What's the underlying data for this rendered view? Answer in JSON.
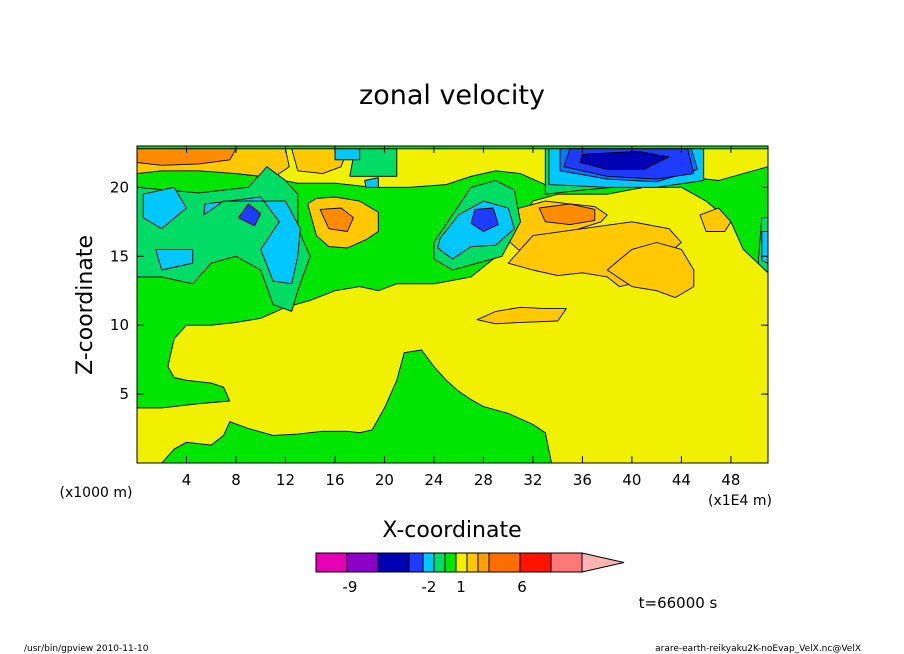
{
  "chart_data": {
    "type": "heatmap",
    "title": "zonal velocity",
    "xlabel": "X-coordinate",
    "ylabel": "Z-coordinate",
    "x_unit_label": "(x1E4 m)",
    "y_unit_label": "(x1000 m)",
    "xlim": [
      0,
      51
    ],
    "ylim": [
      0,
      23
    ],
    "x_ticks": [
      4,
      8,
      12,
      16,
      20,
      24,
      28,
      32,
      36,
      40,
      44,
      48
    ],
    "y_ticks": [
      5,
      10,
      15,
      20
    ],
    "colorbar": {
      "colors": [
        "#e600b4",
        "#8c00c8",
        "#0000b4",
        "#1e3cff",
        "#00c8ff",
        "#00dc64",
        "#00e600",
        "#f0f000",
        "#ffc800",
        "#ffa000",
        "#ff6e00",
        "#ff1400",
        "#ff7878",
        "#ffb4b4"
      ],
      "tick_labels": [
        "-9",
        "-2",
        "1",
        "6"
      ]
    },
    "annotation_time": "t=66000 s",
    "regions": [
      {
        "value": -9,
        "points": [
          [
            36,
            22.4
          ],
          [
            40.5,
            22.6
          ],
          [
            43,
            22.2
          ],
          [
            41,
            21.3
          ],
          [
            38,
            21.3
          ],
          [
            35.8,
            21.8
          ]
        ]
      },
      {
        "value": -6,
        "points": [
          [
            35,
            22.8
          ],
          [
            44.5,
            22.8
          ],
          [
            45,
            21
          ],
          [
            42,
            20.6
          ],
          [
            38,
            20.8
          ],
          [
            34.5,
            21.5
          ]
        ]
      },
      {
        "value": -6,
        "points": [
          [
            9,
            18.8
          ],
          [
            10,
            18.1
          ],
          [
            9.5,
            17.2
          ],
          [
            8.2,
            17.8
          ]
        ]
      },
      {
        "value": -6,
        "points": [
          [
            27.3,
            18.4
          ],
          [
            28.8,
            18.5
          ],
          [
            29.2,
            17.3
          ],
          [
            28,
            16.8
          ],
          [
            27,
            17.4
          ]
        ]
      },
      {
        "value": -4,
        "points": [
          [
            34.2,
            22.8
          ],
          [
            44.8,
            22.8
          ],
          [
            45.3,
            21.3
          ],
          [
            42,
            20.4
          ],
          [
            38,
            20.6
          ],
          [
            34.2,
            21.2
          ]
        ]
      },
      {
        "value": -2,
        "points": [
          [
            33.3,
            22.8
          ],
          [
            45.8,
            22.8
          ],
          [
            45.8,
            20.5
          ],
          [
            42,
            20
          ],
          [
            38,
            20
          ],
          [
            33.3,
            20.2
          ]
        ]
      },
      {
        "value": -2,
        "points": [
          [
            0.5,
            19.5
          ],
          [
            3,
            20
          ],
          [
            4,
            18.5
          ],
          [
            2,
            17
          ],
          [
            0.5,
            17.8
          ]
        ]
      },
      {
        "value": -2,
        "points": [
          [
            5.5,
            18.8
          ],
          [
            10,
            19.3
          ],
          [
            11.5,
            17.5
          ],
          [
            10,
            15.5
          ],
          [
            11,
            13.2
          ],
          [
            12.5,
            13
          ],
          [
            13,
            15
          ],
          [
            13.2,
            17
          ],
          [
            12,
            19
          ],
          [
            7,
            19
          ],
          [
            5.4,
            18
          ]
        ]
      },
      {
        "value": -2,
        "points": [
          [
            24.5,
            16.3
          ],
          [
            26,
            18
          ],
          [
            28,
            19
          ],
          [
            30,
            18.5
          ],
          [
            30.5,
            17
          ],
          [
            29,
            15.8
          ],
          [
            27,
            15.7
          ],
          [
            25.5,
            14.8
          ],
          [
            24.3,
            15.6
          ]
        ]
      },
      {
        "value": -2,
        "points": [
          [
            16,
            22.8
          ],
          [
            18,
            22.8
          ],
          [
            18,
            22
          ],
          [
            16,
            22
          ]
        ]
      },
      {
        "value": -2,
        "points": [
          [
            18.4,
            20.5
          ],
          [
            19.5,
            20.7
          ],
          [
            19.5,
            20
          ],
          [
            18.5,
            20
          ]
        ]
      },
      {
        "value": -2,
        "points": [
          [
            1.5,
            15.5
          ],
          [
            4.5,
            15.5
          ],
          [
            4.5,
            14.5
          ],
          [
            2,
            14
          ]
        ]
      },
      {
        "value": -2,
        "points": [
          [
            50.5,
            16.8
          ],
          [
            51,
            16.8
          ],
          [
            51,
            14.5
          ],
          [
            50.5,
            14.7
          ]
        ]
      },
      {
        "value": -1,
        "points": [
          [
            0,
            20
          ],
          [
            5,
            19.6
          ],
          [
            9,
            20
          ],
          [
            10.5,
            21.5
          ],
          [
            12,
            20.5
          ],
          [
            13,
            19.5
          ],
          [
            13,
            17
          ],
          [
            14,
            15
          ],
          [
            13,
            12.5
          ],
          [
            12.5,
            11
          ],
          [
            11,
            11.5
          ],
          [
            10,
            14
          ],
          [
            8,
            15
          ],
          [
            6,
            14.5
          ],
          [
            4.5,
            13
          ],
          [
            2,
            13.5
          ],
          [
            0,
            13.5
          ]
        ]
      },
      {
        "value": -1,
        "points": [
          [
            17.6,
            22.8
          ],
          [
            21,
            22.8
          ],
          [
            21,
            20.8
          ],
          [
            17.2,
            20.8
          ]
        ]
      },
      {
        "value": -1,
        "points": [
          [
            24,
            16
          ],
          [
            25.5,
            18
          ],
          [
            27,
            20
          ],
          [
            29,
            20.5
          ],
          [
            30.5,
            19.8
          ],
          [
            31,
            17.5
          ],
          [
            29.5,
            15
          ],
          [
            27.5,
            14.5
          ],
          [
            25.5,
            14
          ],
          [
            24,
            14.8
          ]
        ]
      },
      {
        "value": -1,
        "points": [
          [
            33,
            22.8
          ],
          [
            45,
            22.8
          ],
          [
            45,
            21
          ],
          [
            41,
            20.2
          ],
          [
            36,
            19.8
          ],
          [
            33,
            19.5
          ]
        ]
      },
      {
        "value": -1,
        "points": [
          [
            50.5,
            17.8
          ],
          [
            51,
            17.8
          ],
          [
            51,
            13.8
          ],
          [
            50.2,
            14.5
          ]
        ]
      },
      {
        "value": 1,
        "points": [
          [
            0,
            0
          ],
          [
            2,
            0
          ],
          [
            3,
            1
          ],
          [
            4,
            1.5
          ],
          [
            6,
            1.3
          ],
          [
            7,
            2
          ],
          [
            7.5,
            3
          ],
          [
            9,
            2.5
          ],
          [
            11,
            2
          ],
          [
            13,
            2.1
          ],
          [
            15,
            2.3
          ],
          [
            17,
            2.3
          ],
          [
            18,
            2.2
          ],
          [
            19,
            2.4
          ],
          [
            20,
            4
          ],
          [
            21,
            6
          ],
          [
            21.6,
            8
          ],
          [
            23,
            8.2
          ],
          [
            24,
            7
          ],
          [
            25,
            6
          ],
          [
            26,
            5.2
          ],
          [
            27,
            4.6
          ],
          [
            28,
            4.1
          ],
          [
            30,
            3.6
          ],
          [
            31,
            3.2
          ],
          [
            32,
            2.8
          ],
          [
            33,
            2.2
          ],
          [
            33.5,
            0
          ],
          [
            51,
            0
          ],
          [
            51,
            13.8
          ],
          [
            49,
            15.5
          ],
          [
            48,
            17.5
          ],
          [
            46,
            19
          ],
          [
            44,
            20
          ],
          [
            41,
            20
          ],
          [
            38,
            19.5
          ],
          [
            34,
            19.5
          ],
          [
            32,
            19
          ],
          [
            31,
            17.5
          ],
          [
            29.5,
            15.3
          ],
          [
            27,
            13.5
          ],
          [
            24,
            13
          ],
          [
            21,
            13
          ],
          [
            19.5,
            12.5
          ],
          [
            18,
            12.8
          ],
          [
            16,
            12.5
          ],
          [
            14,
            11.8
          ],
          [
            12,
            11.3
          ],
          [
            10,
            10.5
          ],
          [
            8,
            10.2
          ],
          [
            6,
            10
          ],
          [
            4,
            10
          ],
          [
            3,
            9
          ],
          [
            2.5,
            7
          ],
          [
            3,
            6.2
          ],
          [
            4,
            6
          ],
          [
            5,
            5.9
          ],
          [
            6,
            5.8
          ],
          [
            7,
            5.5
          ],
          [
            7.5,
            4.5
          ],
          [
            5,
            4.3
          ],
          [
            2,
            4
          ],
          [
            0,
            4
          ]
        ]
      },
      {
        "value": 1,
        "points": [
          [
            0,
            22.8
          ],
          [
            51,
            22.8
          ],
          [
            51,
            21.5
          ],
          [
            47,
            20.5
          ],
          [
            44,
            20.8
          ],
          [
            41,
            20.6
          ],
          [
            37,
            20.3
          ],
          [
            33,
            20.2
          ],
          [
            31,
            21
          ],
          [
            29,
            21.2
          ],
          [
            27,
            20.8
          ],
          [
            25,
            20.2
          ],
          [
            22,
            20
          ],
          [
            19,
            20
          ],
          [
            16,
            20.3
          ],
          [
            13,
            20.3
          ],
          [
            10,
            20.8
          ],
          [
            8,
            21
          ],
          [
            5,
            21.5
          ],
          [
            2,
            21.5
          ],
          [
            0,
            21.2
          ]
        ]
      },
      {
        "value": 3,
        "points": [
          [
            0,
            22.8
          ],
          [
            12,
            22.8
          ],
          [
            12.3,
            21.5
          ],
          [
            11,
            20.7
          ],
          [
            8,
            21
          ],
          [
            5,
            21.2
          ],
          [
            2,
            21.2
          ],
          [
            0,
            21
          ]
        ]
      },
      {
        "value": 3,
        "points": [
          [
            12.5,
            22.8
          ],
          [
            17,
            22.8
          ],
          [
            16.5,
            21.5
          ],
          [
            15,
            21
          ],
          [
            13,
            21.2
          ]
        ]
      },
      {
        "value": 3,
        "points": [
          [
            13.8,
            18.8
          ],
          [
            14.5,
            16.5
          ],
          [
            15.5,
            15.7
          ],
          [
            17,
            15.6
          ],
          [
            18.5,
            16.2
          ],
          [
            19.5,
            16.8
          ],
          [
            19.5,
            18.2
          ],
          [
            18,
            19
          ],
          [
            16,
            19.3
          ],
          [
            14.5,
            19.2
          ]
        ]
      },
      {
        "value": 3,
        "points": [
          [
            30.5,
            18.4
          ],
          [
            33,
            19
          ],
          [
            35,
            18.8
          ],
          [
            37,
            18.6
          ],
          [
            38,
            18
          ],
          [
            37.5,
            17.5
          ],
          [
            34,
            16.5
          ],
          [
            32,
            15.4
          ],
          [
            30.8,
            15.5
          ],
          [
            29.8,
            16.3
          ]
        ]
      },
      {
        "value": 3,
        "points": [
          [
            32,
            16.5
          ],
          [
            36,
            17
          ],
          [
            40,
            17.5
          ],
          [
            43,
            17
          ],
          [
            44,
            16
          ],
          [
            42,
            14.5
          ],
          [
            40,
            13
          ],
          [
            39,
            12.8
          ],
          [
            38,
            13.5
          ],
          [
            36,
            13.8
          ],
          [
            34,
            13.6
          ],
          [
            32,
            14
          ],
          [
            30,
            14.5
          ]
        ]
      },
      {
        "value": 3,
        "points": [
          [
            38,
            14
          ],
          [
            40,
            15.5
          ],
          [
            42,
            16
          ],
          [
            44,
            15.5
          ],
          [
            45,
            14
          ],
          [
            45,
            12.8
          ],
          [
            43.5,
            12
          ],
          [
            42,
            12.5
          ],
          [
            40,
            12.8
          ]
        ]
      },
      {
        "value": 3,
        "points": [
          [
            45.5,
            18
          ],
          [
            47,
            18.5
          ],
          [
            48,
            17.5
          ],
          [
            47.5,
            16.8
          ],
          [
            46,
            16.8
          ]
        ]
      },
      {
        "value": 3,
        "points": [
          [
            27.5,
            10.4
          ],
          [
            29,
            11
          ],
          [
            31,
            11.3
          ],
          [
            33,
            11.2
          ],
          [
            34.7,
            11.2
          ],
          [
            34,
            10.3
          ],
          [
            31,
            10.2
          ],
          [
            29,
            10.1
          ]
        ]
      },
      {
        "value": 6,
        "points": [
          [
            0,
            22.8
          ],
          [
            8,
            22.8
          ],
          [
            7.5,
            22
          ],
          [
            5,
            21.7
          ],
          [
            2,
            21.6
          ],
          [
            0,
            21.8
          ]
        ]
      },
      {
        "value": 6,
        "points": [
          [
            14.8,
            18.4
          ],
          [
            15.5,
            17
          ],
          [
            17,
            16.8
          ],
          [
            17.5,
            17.8
          ],
          [
            16.5,
            18.5
          ]
        ]
      },
      {
        "value": 6,
        "points": [
          [
            32.5,
            18.5
          ],
          [
            35,
            18.8
          ],
          [
            37,
            18.4
          ],
          [
            37,
            17.6
          ],
          [
            35,
            17.3
          ],
          [
            33,
            17.5
          ]
        ]
      }
    ]
  },
  "footer": {
    "left": "/usr/bin/gpview   2010-11-10",
    "right": "arare-earth-reikyaku2K-noEvap_VelX.nc@VelX"
  }
}
